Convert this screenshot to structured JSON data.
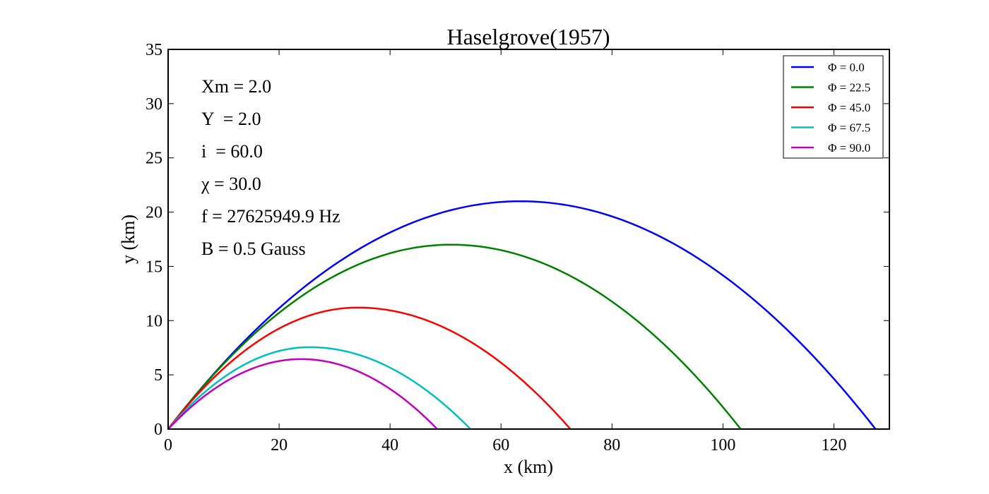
{
  "chart_data": {
    "type": "line",
    "title": "Haselgrove(1957)",
    "xlabel": "x (km)",
    "ylabel": "y (km)",
    "xlim": [
      0,
      130
    ],
    "ylim": [
      0,
      35
    ],
    "xticks": [
      "0",
      "20",
      "40",
      "60",
      "80",
      "100",
      "120"
    ],
    "yticks": [
      "0",
      "5",
      "10",
      "15",
      "20",
      "25",
      "30",
      "35"
    ],
    "grid": false,
    "legend_position": "top-right",
    "annotations": [
      "Xm = 2.0",
      "Y  = 2.0",
      "i  = 60.0",
      "χ = 30.0",
      "f = 27625949.9 Hz",
      "B = 0.5 Gauss"
    ],
    "series": [
      {
        "name": "Φ = 0.0",
        "color": "#0000ff",
        "peak_x": 63.5,
        "peak_y": 21.0,
        "end_x": 127.5
      },
      {
        "name": "Φ = 22.5",
        "color": "#008000",
        "peak_x": 51.0,
        "peak_y": 17.0,
        "end_x": 103.2
      },
      {
        "name": "Φ = 45.0",
        "color": "#ff0000",
        "peak_x": 34.2,
        "peak_y": 11.2,
        "end_x": 72.5
      },
      {
        "name": "Φ = 67.5",
        "color": "#00bfbf",
        "peak_x": 25.5,
        "peak_y": 7.55,
        "end_x": 54.5
      },
      {
        "name": "Φ = 90.0",
        "color": "#bf00bf",
        "peak_x": 24.0,
        "peak_y": 6.45,
        "end_x": 48.5
      }
    ]
  }
}
